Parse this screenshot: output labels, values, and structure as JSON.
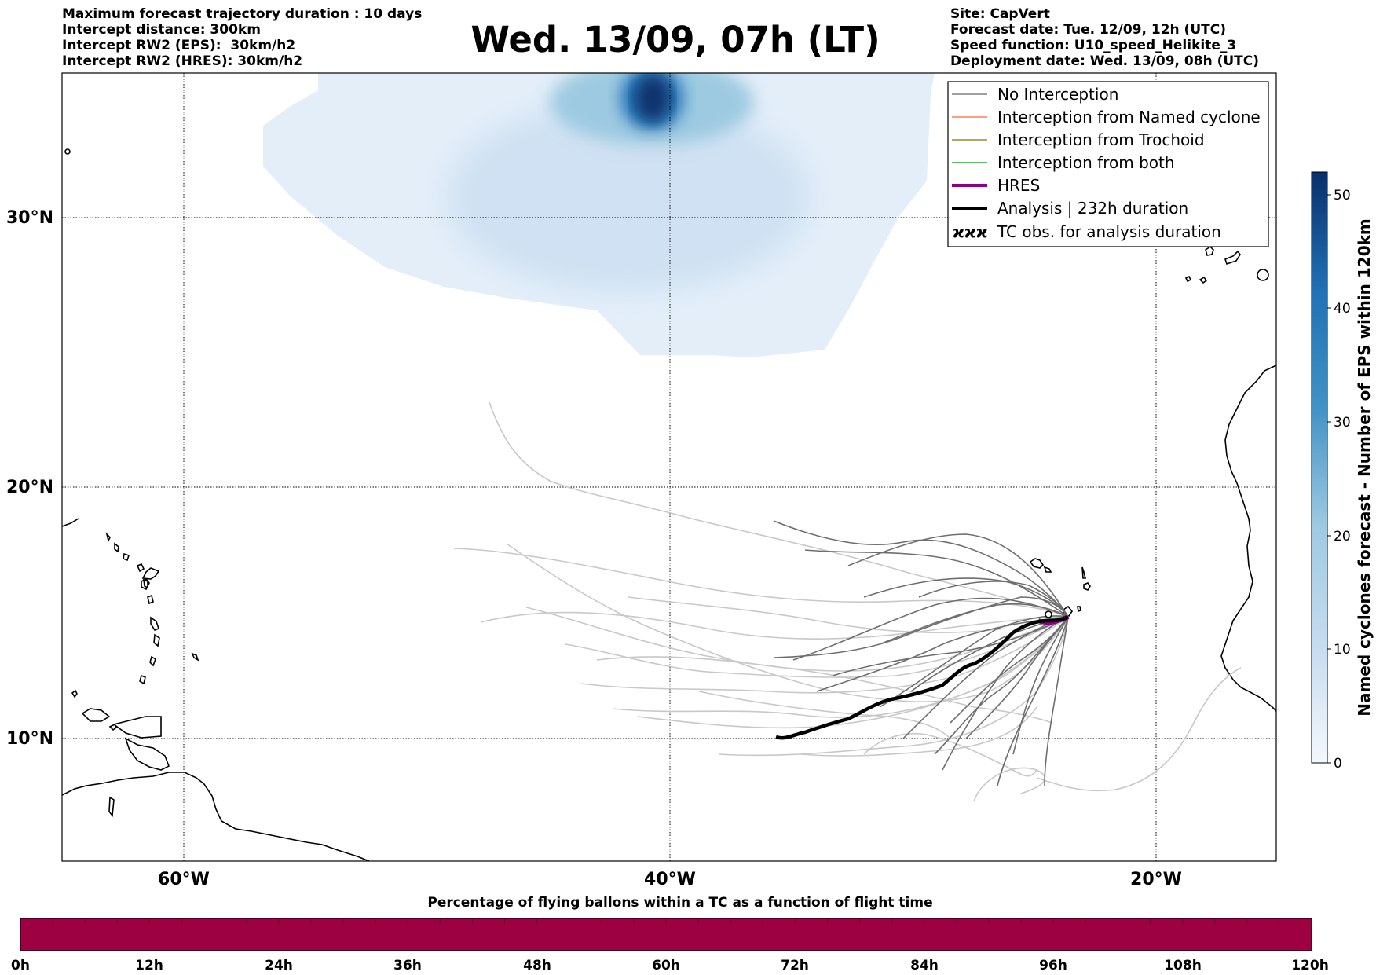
{
  "header_left": [
    "Maximum forecast trajectory duration : 10 days",
    "Intercept distance: 300km",
    "Intercept RW2 (EPS):  30km/h2",
    "Intercept RW2 (HRES): 30km/h2"
  ],
  "header_right": [
    "Site: CapVert",
    "Forecast date: Tue. 12/09, 12h (UTC)",
    "Speed function: U10_speed_Helikite_3",
    "Deployment date: Wed. 13/09, 08h (UTC)"
  ],
  "title": "Wed. 13/09, 07h (LT)",
  "map": {
    "lon_range": [
      -65,
      -15
    ],
    "lat_range": [
      5,
      35
    ],
    "lat_labels": [
      "30°N",
      "20°N",
      "10°N"
    ],
    "lon_labels": [
      "60°W",
      "40°W",
      "20°W"
    ],
    "lat_values": [
      30,
      20,
      10
    ],
    "lon_values": [
      -60,
      -40,
      -20
    ]
  },
  "legend": [
    {
      "label": "No Interception",
      "color": "#808080"
    },
    {
      "label": "Interception from Named cyclone",
      "color": "#ff7f50"
    },
    {
      "label": "Interception from Trochoid",
      "color": "#9a8a30"
    },
    {
      "label": "Interception from both",
      "color": "#2ca02c"
    },
    {
      "label": "HRES",
      "color": "#8b008b"
    },
    {
      "label": "Analysis | 232h duration",
      "color": "#000000"
    },
    {
      "label": "TC obs. for analysis duration",
      "icon": "cyclone-icon"
    }
  ],
  "colorbar": {
    "label": "Named cyclones forecast - Number of EPS within 120km",
    "ticks": [
      "0",
      "10",
      "20",
      "30",
      "40",
      "50"
    ],
    "min": 0,
    "max": 52
  },
  "timeline": {
    "label": "Percentage of flying ballons within a TC as a function of flight time",
    "ticks": [
      "0h",
      "12h",
      "24h",
      "36h",
      "48h",
      "60h",
      "72h",
      "84h",
      "96h",
      "108h",
      "120h"
    ],
    "color": "#9e0142"
  },
  "colors": {
    "trajectory_light": "#c8c8c8",
    "trajectory_dark": "#6e6e6e",
    "hres": "#8b008b",
    "analysis": "#000000"
  }
}
